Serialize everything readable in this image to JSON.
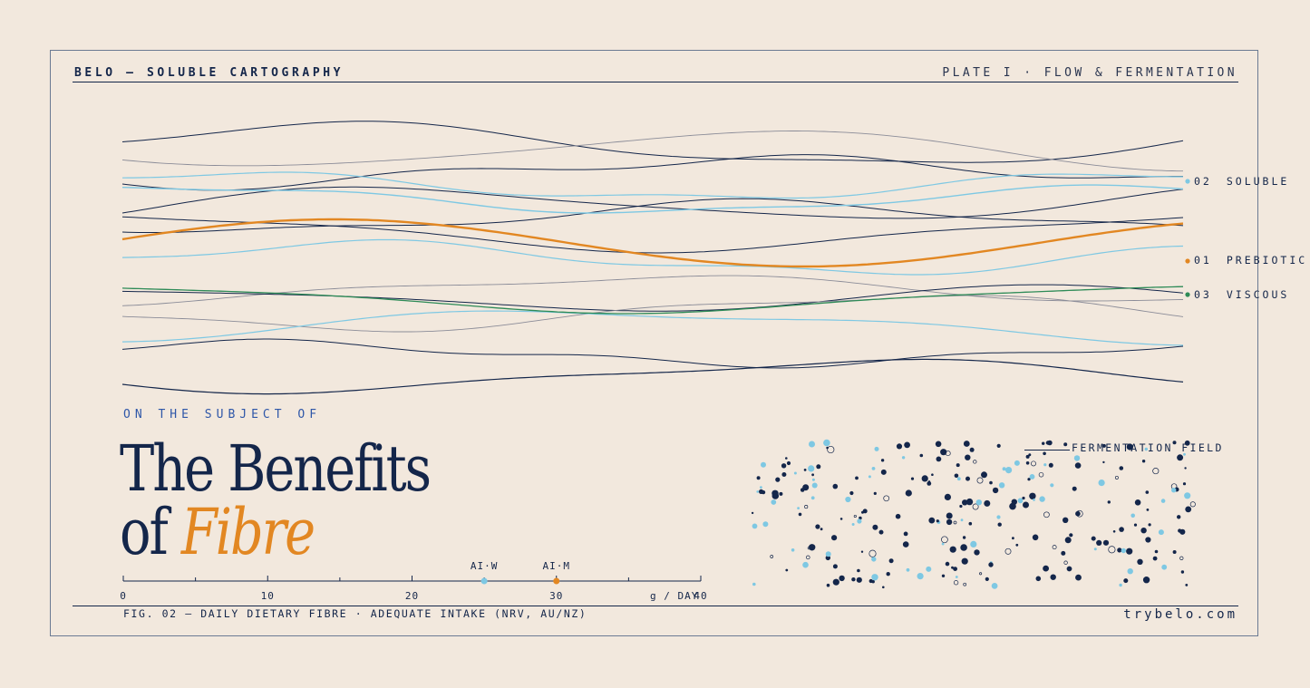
{
  "header": {
    "brand": "BELO — SOLUBLE CARTOGRAPHY",
    "plate": "PLATE I · FLOW & FERMENTATION"
  },
  "legend": [
    {
      "num": "02",
      "label": "SOLUBLE",
      "color": "#7ec8e3"
    },
    {
      "num": "01",
      "label": "PREBIOTIC",
      "color": "#e28722"
    },
    {
      "num": "03",
      "label": "VISCOUS",
      "color": "#2e8b57"
    }
  ],
  "kicker": "ON THE SUBJECT OF",
  "title": {
    "line1": "The Benefits",
    "line2_prefix": "of ",
    "line2_accent": "Fibre"
  },
  "intake_scale": {
    "ticks": [
      "0",
      "10",
      "20",
      "30",
      "40"
    ],
    "unit": "g / DAY",
    "markers": [
      {
        "label": "AI·W",
        "value": 25,
        "color": "#7ec8e3"
      },
      {
        "label": "AI·M",
        "value": 30,
        "color": "#e28722"
      }
    ]
  },
  "field_label": "FERMENTATION FIELD",
  "caption": "FIG. 02 — DAILY DIETARY FIBRE · ADEQUATE INTAKE (NRV, AU/NZ)",
  "site": "trybelo.com",
  "colors": {
    "background": "#f2e8dd",
    "navy": "#14264a",
    "orange": "#e28722",
    "sky": "#7ec8e3",
    "green": "#2e8b57",
    "grey": "#8b8c98"
  }
}
